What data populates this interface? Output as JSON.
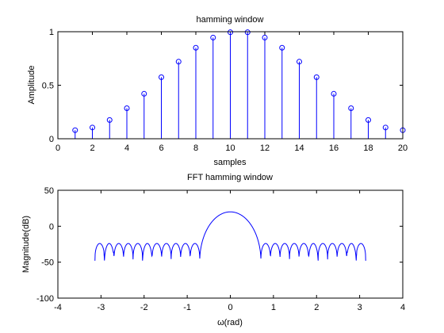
{
  "chart_data": [
    {
      "type": "stem",
      "title": "hamming window",
      "xlabel": "samples",
      "ylabel": "Amplitude",
      "xlim": [
        0,
        20
      ],
      "ylim": [
        0,
        1
      ],
      "xticks": [
        "0",
        "2",
        "4",
        "6",
        "8",
        "10",
        "12",
        "14",
        "16",
        "18",
        "20"
      ],
      "yticks": [
        "0",
        "0.5",
        "1"
      ],
      "x": [
        1,
        2,
        3,
        4,
        5,
        6,
        7,
        8,
        9,
        10,
        11,
        12,
        13,
        14,
        15,
        16,
        17,
        18,
        19,
        20
      ],
      "values": [
        0.08,
        0.105,
        0.175,
        0.285,
        0.42,
        0.575,
        0.72,
        0.85,
        0.945,
        0.995,
        0.995,
        0.945,
        0.85,
        0.72,
        0.575,
        0.42,
        0.285,
        0.175,
        0.105,
        0.08
      ],
      "color": "#0000ff"
    },
    {
      "type": "line",
      "title": "FFT hamming window",
      "xlabel": "ω(rad)",
      "ylabel": "Magnitude(dB)",
      "xlim": [
        -4,
        4
      ],
      "ylim": [
        -100,
        50
      ],
      "xticks": [
        "-4",
        "-3",
        "-2",
        "-1",
        "0",
        "1",
        "2",
        "3",
        "4"
      ],
      "yticks": [
        "-100",
        "-50",
        "0",
        "50"
      ],
      "color": "#0000ff",
      "main_lobe": {
        "peak_db": 20,
        "half_width_rad": 0.71,
        "edge_db": -49
      },
      "side_lobes": {
        "range_rad": [
          0.71,
          3.14
        ],
        "count": 11,
        "peak_db": -24,
        "null_db": -48,
        "deep_null_db": -55,
        "deep_null_positions_rad": [
          1.93,
          2.82
        ]
      }
    }
  ]
}
